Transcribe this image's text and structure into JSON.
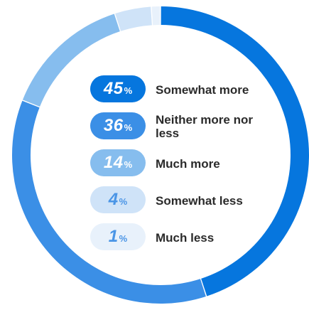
{
  "chart_data": {
    "type": "pie",
    "variant": "donut",
    "categories": [
      "Somewhat more",
      "Neither more nor less",
      "Much more",
      "Somewhat less",
      "Much less"
    ],
    "values": [
      45,
      36,
      14,
      4,
      1
    ],
    "unit": "%",
    "colors": [
      "#0676de",
      "#3b8fe6",
      "#86bdee",
      "#cfe3f8",
      "#e8f1fb"
    ],
    "pill_text_colors": [
      "#ffffff",
      "#ffffff",
      "#ffffff",
      "#4a95e6",
      "#4a95e6"
    ],
    "legend": [
      {
        "value": "45",
        "sign": "%",
        "label": "Somewhat more"
      },
      {
        "value": "36",
        "sign": "%",
        "label": "Neither more nor less"
      },
      {
        "value": "14",
        "sign": "%",
        "label": "Much more"
      },
      {
        "value": "4",
        "sign": "%",
        "label": "Somewhat less"
      },
      {
        "value": "1",
        "sign": "%",
        "label": "Much less"
      }
    ]
  }
}
